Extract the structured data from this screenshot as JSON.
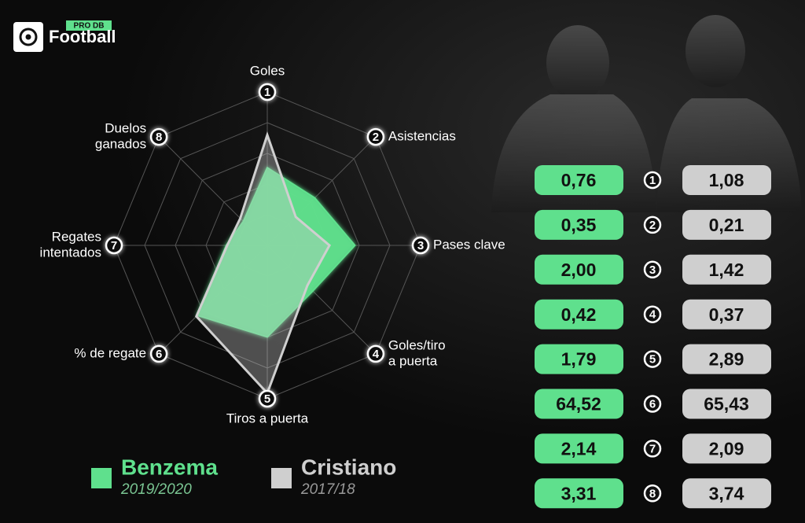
{
  "logo": {
    "badge": "PRO DB",
    "name": "Football"
  },
  "chart_data": {
    "type": "radar",
    "axes": [
      {
        "number": "1",
        "label": [
          "Goles"
        ]
      },
      {
        "number": "2",
        "label": [
          "Asistencias"
        ]
      },
      {
        "number": "3",
        "label": [
          "Pases clave"
        ]
      },
      {
        "number": "4",
        "label": [
          "Goles/tiro",
          "a puerta"
        ]
      },
      {
        "number": "5",
        "label": [
          "Tiros a puerta"
        ]
      },
      {
        "number": "6",
        "label": [
          "% de regate"
        ]
      },
      {
        "number": "7",
        "label": [
          "Regates",
          "intentados"
        ]
      },
      {
        "number": "8",
        "label": [
          "Duelos",
          "ganados"
        ]
      }
    ],
    "rlims": [
      [
        0,
        1.5
      ],
      [
        0,
        0.8
      ],
      [
        0,
        3.5
      ],
      [
        0,
        1
      ],
      [
        0,
        3
      ],
      [
        0,
        100
      ],
      [
        0,
        8
      ],
      [
        0,
        15
      ]
    ],
    "series": [
      {
        "name": "Benzema",
        "season": "2019/2020",
        "color": "#5fe08d",
        "values": [
          0.76,
          0.35,
          2.0,
          0.42,
          1.79,
          64.52,
          2.14,
          3.31
        ],
        "value_labels": [
          "0,76",
          "0,35",
          "2,00",
          "0,42",
          "1,79",
          "64,52",
          "2,14",
          "3,31"
        ]
      },
      {
        "name": "Cristiano",
        "season": "2017/18",
        "color": "#cfcfcf",
        "values": [
          1.08,
          0.21,
          1.42,
          0.37,
          2.89,
          65.43,
          2.09,
          3.74
        ],
        "value_labels": [
          "1,08",
          "0,21",
          "1,42",
          "0,37",
          "2,89",
          "65,43",
          "2,09",
          "3,74"
        ]
      }
    ]
  }
}
